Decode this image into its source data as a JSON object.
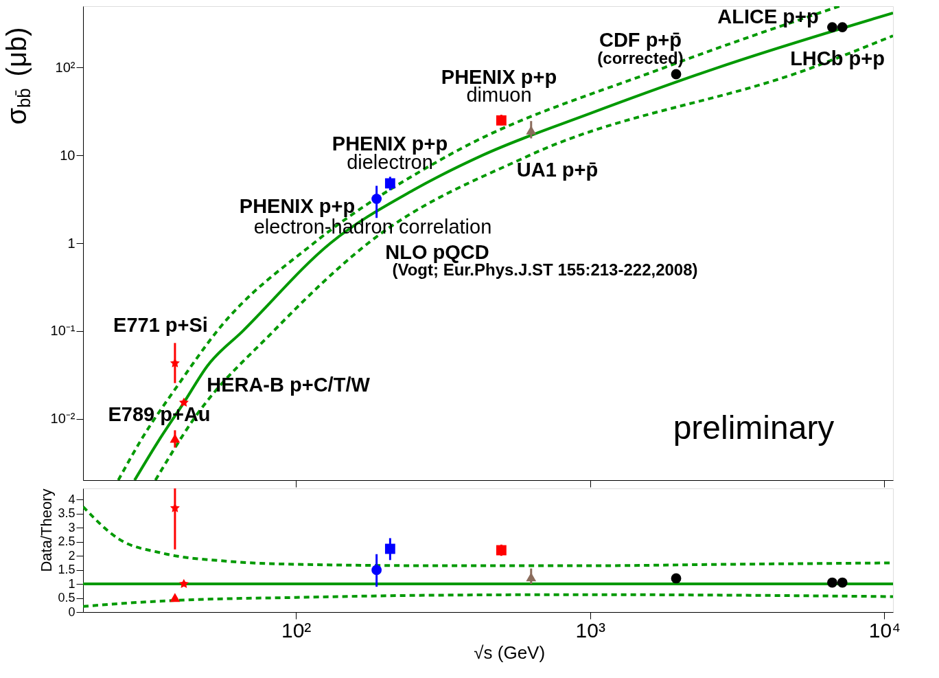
{
  "chart_data": [
    {
      "type": "scatter",
      "ylabel": "σ$_{bb̄}$ (μb)",
      "log": "xy",
      "xlim": [
        18.9,
        10700
      ],
      "ylim": [
        0.002,
        500
      ],
      "yticks": [
        {
          "value": 0.01,
          "label": "10⁻²"
        },
        {
          "value": 0.1,
          "label": "10⁻¹"
        },
        1,
        10,
        {
          "value": 100,
          "label": "10²"
        }
      ],
      "tick_labels": "y",
      "grid": false,
      "xticks": [
        {
          "value": 100,
          "label": null
        },
        {
          "value": 1000,
          "label": null
        },
        {
          "value": 10000,
          "label": null
        }
      ],
      "series": [
        {
          "type": "line",
          "color": "#009900",
          "line_style": "solid",
          "x": [
            28.3,
            34,
            41.6,
            50,
            66,
            131,
            250,
            430,
            1000,
            2720,
            10700
          ],
          "values": [
            0.002,
            0.0055,
            0.0153,
            0.04,
            0.1,
            1,
            4,
            10,
            30,
            100,
            418
          ]
        },
        {
          "type": "line",
          "color": "#009900",
          "line_style": "dashed",
          "x": [
            24.9,
            30,
            40,
            54,
            115,
            330,
            1790,
            7030
          ],
          "values": [
            0.002,
            0.006,
            0.025,
            0.1,
            1,
            10,
            100,
            500
          ]
        },
        {
          "type": "line",
          "color": "#009900",
          "line_style": "dashed",
          "x": [
            33.3,
            45,
            84,
            176,
            622,
            5690,
            10700
          ],
          "values": [
            0.002,
            0.01,
            0.1,
            1,
            10,
            100,
            230
          ]
        },
        {
          "color": "#ff0000",
          "marker": "star",
          "x": [
            38.8
          ],
          "values": [
            0.043
          ],
          "errors": [
            [
              0.0255,
              0.073
            ]
          ]
        },
        {
          "color": "#ff0000",
          "marker": "star",
          "x": [
            41.6
          ],
          "values": [
            0.0153
          ]
        },
        {
          "color": "#ff0000",
          "marker": "triangle",
          "x": [
            38.8
          ],
          "values": [
            0.006
          ],
          "errors": [
            [
              0.0047,
              0.0074
            ]
          ]
        },
        {
          "color": "#0000ff",
          "marker": "circle",
          "x": [
            188
          ],
          "values": [
            3.2
          ],
          "errors": [
            [
              1.94,
              4.5
            ]
          ]
        },
        {
          "color": "#0000ff",
          "marker": "square",
          "x": [
            209
          ],
          "values": [
            4.8
          ],
          "errors": [
            [
              4.0,
              5.7
            ]
          ]
        },
        {
          "color": "#ff0000",
          "marker": "square",
          "x": [
            499
          ],
          "values": [
            25
          ],
          "errors": [
            [
              22,
              29
            ]
          ]
        },
        {
          "color": "#8b6c5c",
          "marker": "triangle",
          "x": [
            630
          ],
          "values": [
            19.4
          ],
          "errors": [
            [
              15.6,
              24.6
            ]
          ]
        },
        {
          "color": "#000000",
          "marker": "circle",
          "x": [
            1960
          ],
          "values": [
            84
          ]
        },
        {
          "color": "#000000",
          "marker": "circle",
          "x": [
            6650
          ],
          "values": [
            288
          ]
        },
        {
          "color": "#000000",
          "marker": "circle",
          "x": [
            7200
          ],
          "values": [
            288
          ]
        }
      ],
      "annotations": [
        "ALICE p+p",
        "LHCb p+p",
        "CDF p+p̄",
        "(corrected)",
        "PHENIX p+p",
        "dimuon",
        "PHENIX p+p",
        "dielectron",
        "UA1 p+p̄",
        "PHENIX p+p",
        "electron-hadron correlation",
        "NLO pQCD",
        "(Vogt; Eur.Phys.J.ST 155:213-222,2008)",
        "E771 p+Si",
        "HERA-B p+C/T/W",
        "E789 p+Au",
        "preliminary"
      ]
    },
    {
      "type": "scatter",
      "xlabel": "√s (GeV)",
      "ylabel": "Data/Theory",
      "log": "x",
      "xlim": [
        18.9,
        10700
      ],
      "ylim": [
        0,
        4.4
      ],
      "xticks": [
        {
          "value": 100,
          "label": "10²"
        },
        {
          "value": 1000,
          "label": "10³"
        },
        {
          "value": 10000,
          "label": "10⁴"
        }
      ],
      "yticks": [
        0,
        0.5,
        1,
        1.5,
        2,
        2.5,
        3,
        3.5,
        4
      ],
      "grid": false,
      "series": [
        {
          "type": "line",
          "color": "#009900",
          "line_style": "solid",
          "x": [
            18.9,
            10700
          ],
          "values": [
            1,
            1
          ]
        },
        {
          "type": "line",
          "color": "#009900",
          "line_style": "dashed",
          "x": [
            18.9,
            25,
            35,
            60,
            100,
            300,
            1000,
            3000,
            10700
          ],
          "values": [
            3.75,
            2.6,
            2.1,
            1.8,
            1.7,
            1.65,
            1.65,
            1.7,
            1.75
          ]
        },
        {
          "type": "line",
          "color": "#009900",
          "line_style": "dashed",
          "x": [
            18.9,
            25,
            40,
            100,
            300,
            1000,
            3000,
            10700
          ],
          "values": [
            0.2,
            0.3,
            0.42,
            0.52,
            0.6,
            0.62,
            0.6,
            0.55
          ]
        },
        {
          "color": "#ff0000",
          "marker": "star",
          "x": [
            38.8
          ],
          "values": [
            3.7
          ],
          "errors": [
            [
              2.23,
              4.4
            ]
          ]
        },
        {
          "color": "#ff0000",
          "marker": "star",
          "x": [
            41.6
          ],
          "values": [
            1.0
          ]
        },
        {
          "color": "#ff0000",
          "marker": "triangle",
          "x": [
            38.8
          ],
          "values": [
            0.52
          ]
        },
        {
          "color": "#0000ff",
          "marker": "circle",
          "x": [
            188
          ],
          "values": [
            1.5
          ],
          "errors": [
            [
              0.9,
              2.06
            ]
          ]
        },
        {
          "color": "#0000ff",
          "marker": "square",
          "x": [
            209
          ],
          "values": [
            2.25
          ],
          "errors": [
            [
              1.85,
              2.63
            ]
          ]
        },
        {
          "color": "#ff0000",
          "marker": "square",
          "x": [
            499
          ],
          "values": [
            2.2
          ],
          "errors": [
            [
              2.0,
              2.4
            ]
          ]
        },
        {
          "color": "#8b6c5c",
          "marker": "triangle",
          "x": [
            630
          ],
          "values": [
            1.25
          ],
          "errors": [
            [
              1.0,
              1.55
            ]
          ]
        },
        {
          "color": "#000000",
          "marker": "circle",
          "x": [
            1960
          ],
          "values": [
            1.2
          ]
        },
        {
          "color": "#000000",
          "marker": "circle",
          "x": [
            6650
          ],
          "values": [
            1.05
          ]
        },
        {
          "color": "#000000",
          "marker": "circle",
          "x": [
            7200
          ],
          "values": [
            1.05
          ]
        }
      ]
    }
  ]
}
